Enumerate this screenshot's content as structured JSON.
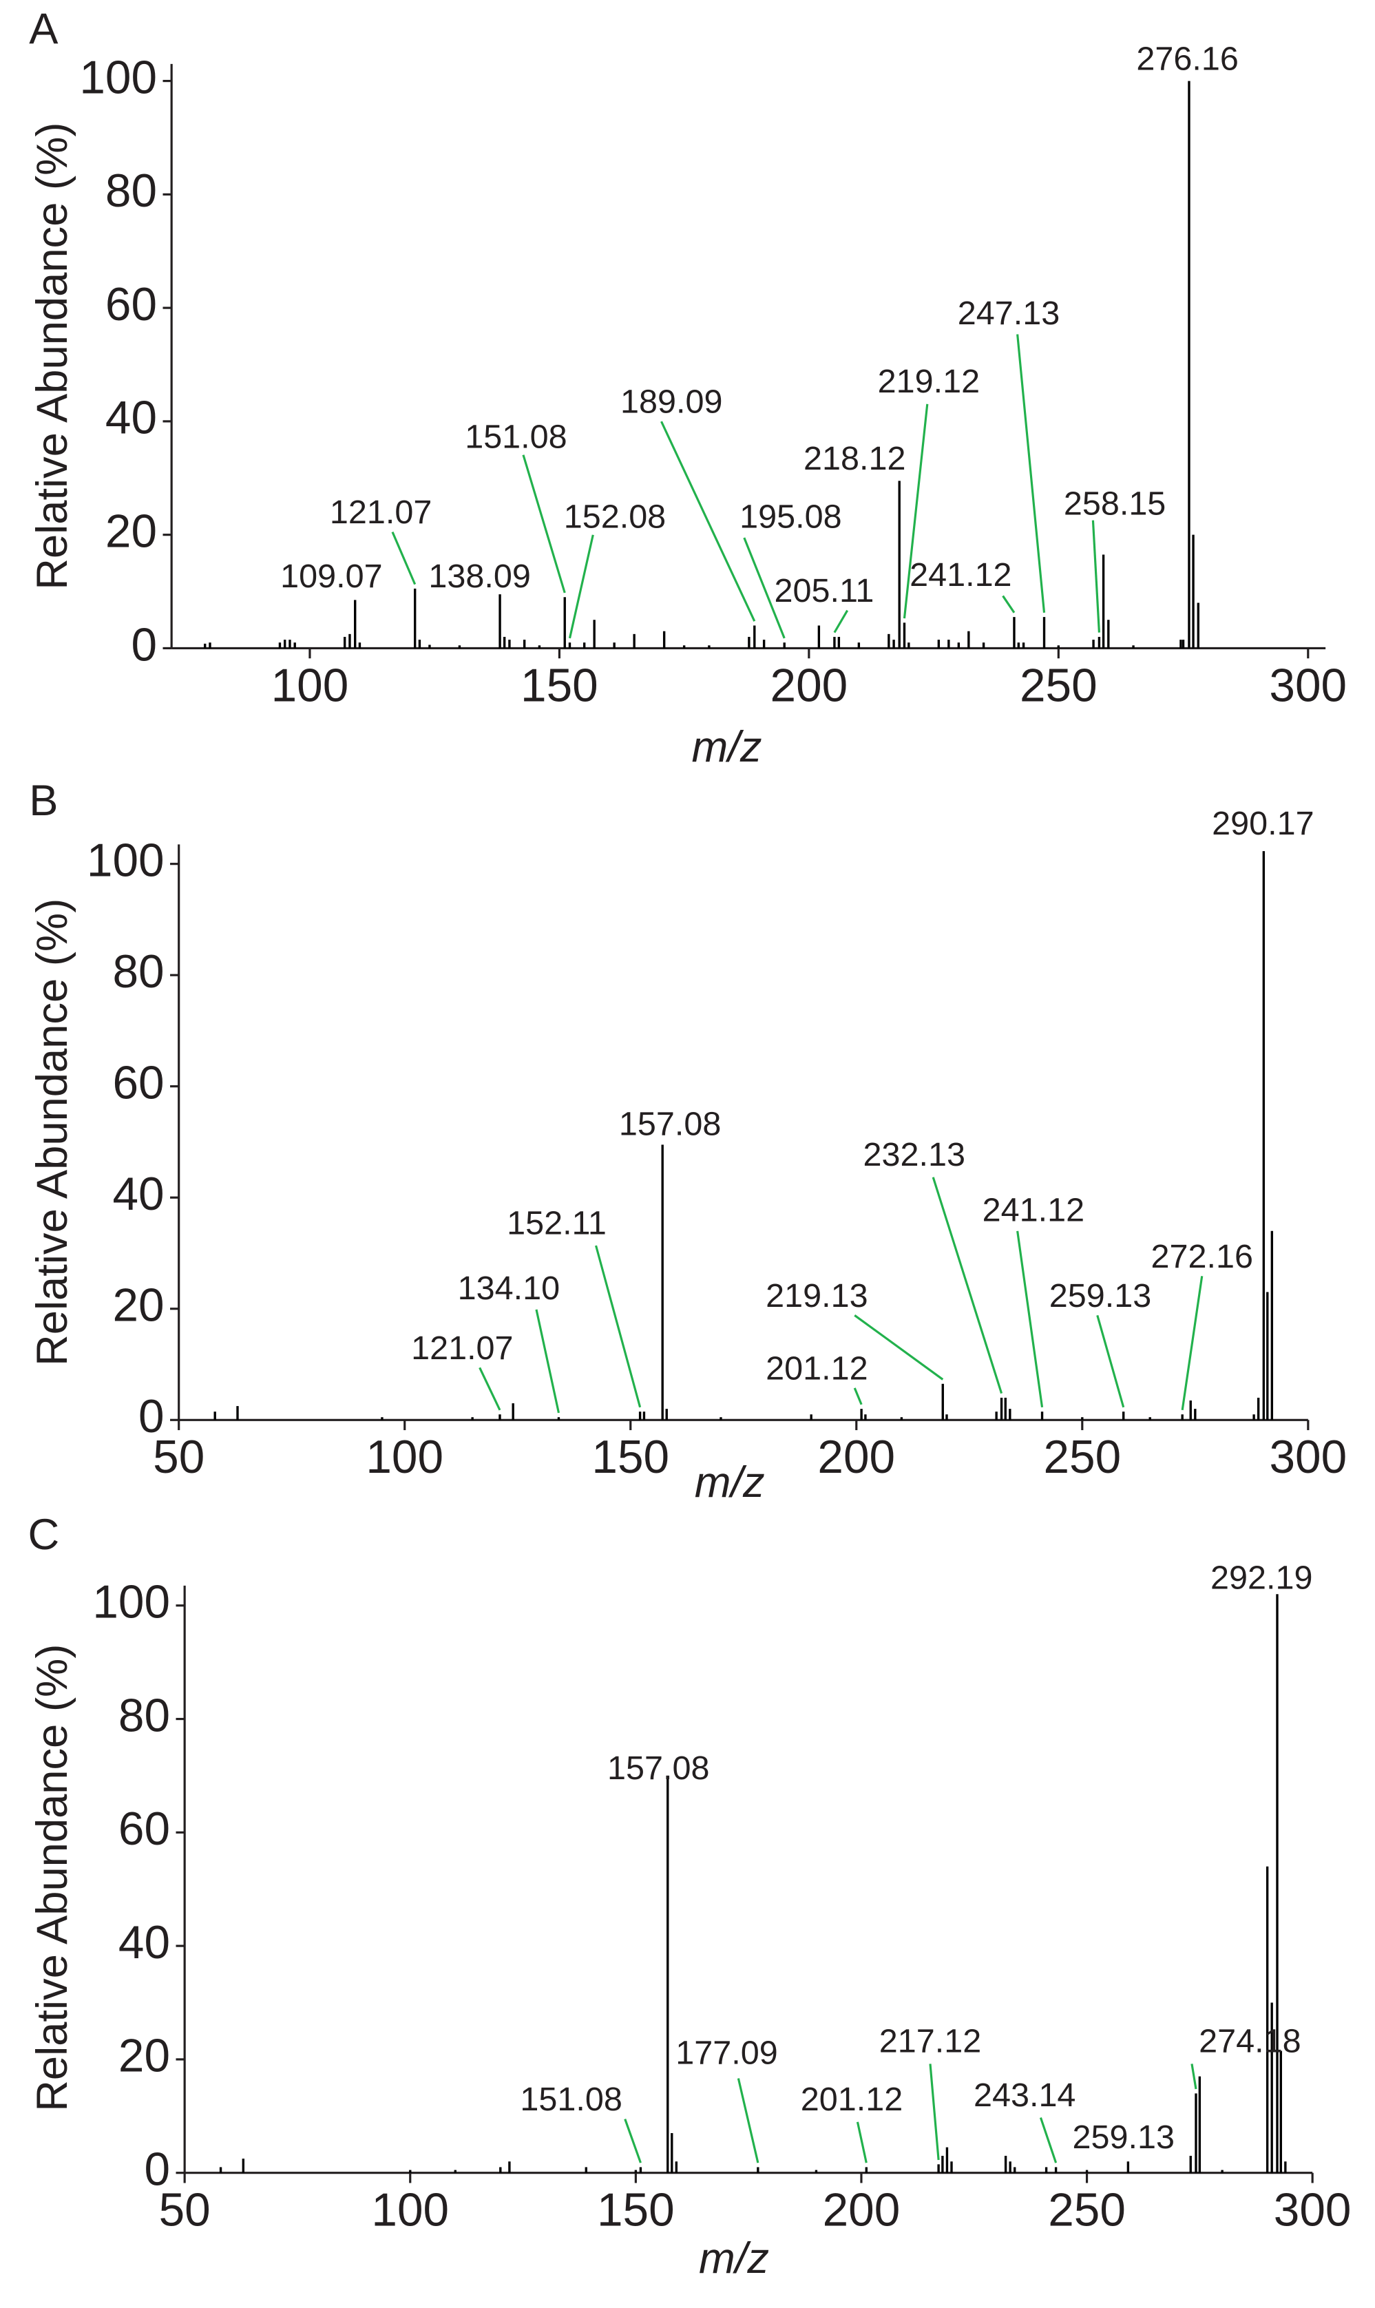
{
  "chart_data": [
    {
      "type": "stem",
      "panel_label": "A",
      "xlabel": "m/z",
      "ylabel": "Relative Abundance (%)",
      "color": "#000000",
      "annotation_color": "#22b14c",
      "xlim": [
        72.3,
        303.5
      ],
      "xticks": [
        100,
        150,
        200,
        250,
        300
      ],
      "ylim": [
        0,
        103
      ],
      "yticks": [
        0,
        20,
        40,
        60,
        80,
        100
      ],
      "x": [
        79,
        80,
        94,
        95,
        96,
        97,
        107,
        108,
        109.07,
        110,
        121.07,
        122,
        124,
        130,
        138.09,
        139,
        140,
        143,
        146,
        151.08,
        152.08,
        155,
        157,
        161,
        165,
        171,
        175,
        180,
        188,
        189.09,
        191,
        195.08,
        202,
        205.11,
        206,
        210,
        216,
        217,
        218.12,
        219.12,
        220,
        226,
        228,
        230,
        232,
        235,
        241.12,
        242,
        243,
        247.13,
        250,
        257,
        258.15,
        259,
        260,
        265,
        274.5,
        275,
        276.16,
        277,
        278
      ],
      "values": [
        0.8,
        1,
        1,
        1.5,
        1.5,
        1,
        2,
        2.5,
        8.5,
        1,
        10.5,
        1.5,
        0.6,
        0.5,
        9.5,
        2,
        1.5,
        1.5,
        0.5,
        9,
        1,
        1,
        5,
        1,
        2.5,
        3,
        0.5,
        0.5,
        2,
        4,
        1.5,
        1,
        4,
        2,
        2,
        1,
        2.5,
        1.5,
        29.5,
        4.5,
        1,
        1.5,
        1.5,
        1,
        3,
        1,
        5.5,
        1,
        1,
        5.5,
        0.5,
        1.5,
        2,
        16.5,
        5,
        0.5,
        1.5,
        1.5,
        100,
        20,
        8
      ],
      "annotations": [
        {
          "label": "276.16",
          "x": 276.16
        },
        {
          "label": "109.07",
          "x": 109.07
        },
        {
          "label": "121.07",
          "x": 121.07
        },
        {
          "label": "138.09",
          "x": 138.09
        },
        {
          "label": "151.08",
          "x": 151.08
        },
        {
          "label": "152.08",
          "x": 152.08
        },
        {
          "label": "189.09",
          "x": 189.09
        },
        {
          "label": "195.08",
          "x": 195.08
        },
        {
          "label": "205.11",
          "x": 205.11
        },
        {
          "label": "218.12",
          "x": 218.12
        },
        {
          "label": "219.12",
          "x": 219.12
        },
        {
          "label": "241.12",
          "x": 241.12
        },
        {
          "label": "247.13",
          "x": 247.13
        },
        {
          "label": "258.15",
          "x": 258.15
        }
      ]
    },
    {
      "type": "stem",
      "panel_label": "B",
      "xlabel": "m/z",
      "ylabel": "Relative Abundance (%)",
      "color": "#000000",
      "annotation_color": "#22b14c",
      "xlim": [
        50,
        300
      ],
      "xticks": [
        50,
        100,
        150,
        200,
        250,
        300
      ],
      "ylim": [
        0,
        103.5
      ],
      "yticks": [
        0,
        20,
        40,
        60,
        80,
        100
      ],
      "x": [
        58,
        63,
        95,
        115,
        121.07,
        124,
        134.1,
        152.11,
        153,
        157.08,
        158,
        170,
        190,
        201.12,
        202,
        210,
        219.13,
        220,
        231,
        232.13,
        233,
        234,
        241.12,
        250,
        259.13,
        265,
        272.16,
        274,
        275,
        288,
        289,
        290.17,
        291,
        292
      ],
      "values": [
        1.5,
        2.5,
        0.5,
        0.5,
        1,
        3,
        0.5,
        1.5,
        1.5,
        49.5,
        2,
        0.5,
        1,
        2,
        1,
        0.5,
        6.5,
        1,
        1.5,
        4,
        4,
        2,
        1.5,
        0.5,
        1.5,
        0.5,
        1,
        3.5,
        2,
        1,
        4,
        102.3,
        23,
        34
      ],
      "annotations": [
        {
          "label": "290.17",
          "x": 290.17
        },
        {
          "label": "157.08",
          "x": 157.08
        },
        {
          "label": "152.11",
          "x": 152.11
        },
        {
          "label": "134.10",
          "x": 134.1
        },
        {
          "label": "121.07",
          "x": 121.07
        },
        {
          "label": "232.13",
          "x": 232.13
        },
        {
          "label": "241.12",
          "x": 241.12
        },
        {
          "label": "272.16",
          "x": 272.16
        },
        {
          "label": "259.13",
          "x": 259.13
        },
        {
          "label": "219.13",
          "x": 219.13
        },
        {
          "label": "201.12",
          "x": 201.12
        }
      ]
    },
    {
      "type": "stem",
      "panel_label": "C",
      "xlabel": "m/z",
      "ylabel": "Relative Abundance (%)",
      "color": "#000000",
      "annotation_color": "#22b14c",
      "xlim": [
        50,
        300
      ],
      "xticks": [
        50,
        100,
        150,
        200,
        250,
        300
      ],
      "ylim": [
        0,
        103.5
      ],
      "yticks": [
        0,
        20,
        40,
        60,
        80,
        100
      ],
      "x": [
        58,
        63,
        100,
        110,
        120,
        122,
        139,
        150,
        151.08,
        157.08,
        158,
        159,
        177.09,
        190,
        201.12,
        217.12,
        218,
        219,
        220,
        232,
        233,
        234,
        241,
        243.14,
        250,
        259.13,
        273,
        274.18,
        275,
        280,
        290,
        291,
        292.19,
        293,
        294
      ],
      "values": [
        1,
        2.5,
        0.5,
        0.5,
        1,
        2,
        1,
        0.5,
        1,
        70,
        7,
        2,
        1,
        0.5,
        1,
        1.5,
        3,
        4.5,
        2,
        3,
        2,
        1,
        1,
        1,
        0.5,
        2,
        3,
        14,
        17,
        0.5,
        54,
        30,
        102,
        21.5,
        2
      ],
      "annotations": [
        {
          "label": "292.19",
          "x": 292.19
        },
        {
          "label": "157.08",
          "x": 157.08
        },
        {
          "label": "151.08",
          "x": 151.08
        },
        {
          "label": "177.09",
          "x": 177.09
        },
        {
          "label": "201.12",
          "x": 201.12
        },
        {
          "label": "217.12",
          "x": 217.12
        },
        {
          "label": "243.14",
          "x": 243.14
        },
        {
          "label": "259.13",
          "x": 259.13
        },
        {
          "label": "274.18",
          "x": 274.18
        }
      ]
    }
  ]
}
